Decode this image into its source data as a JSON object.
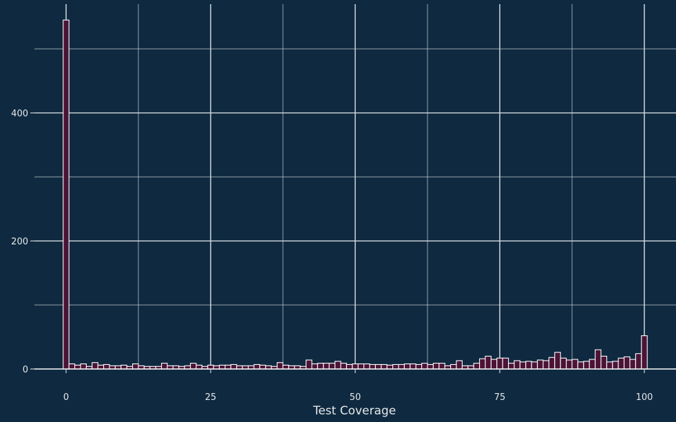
{
  "chart_data": {
    "type": "bar",
    "title": "",
    "xlabel": "Test Coverage",
    "ylabel": "",
    "xlim": [
      -2,
      105
    ],
    "ylim": [
      0,
      565
    ],
    "bin_width": 1,
    "x_ticks": [
      0,
      25,
      50,
      75,
      100
    ],
    "y_ticks": [
      0,
      200,
      400
    ],
    "y_minor_grid": [
      100,
      300,
      500
    ],
    "x_minor_grid": [
      12.5,
      37.5,
      62.5,
      87.5
    ],
    "grid": true,
    "colors": {
      "background": "#0f2a40",
      "bar_fill": "#4b1437",
      "bar_edge": "#ffffff",
      "grid": "#d0d5db",
      "text": "#e6e8ea"
    },
    "bins": [
      0,
      1,
      2,
      3,
      4,
      5,
      6,
      7,
      8,
      9,
      10,
      11,
      12,
      13,
      14,
      15,
      16,
      17,
      18,
      19,
      20,
      21,
      22,
      23,
      24,
      25,
      26,
      27,
      28,
      29,
      30,
      31,
      32,
      33,
      34,
      35,
      36,
      37,
      38,
      39,
      40,
      41,
      42,
      43,
      44,
      45,
      46,
      47,
      48,
      49,
      50,
      51,
      52,
      53,
      54,
      55,
      56,
      57,
      58,
      59,
      60,
      61,
      62,
      63,
      64,
      65,
      66,
      67,
      68,
      69,
      70,
      71,
      72,
      73,
      74,
      75,
      76,
      77,
      78,
      79,
      80,
      81,
      82,
      83,
      84,
      85,
      86,
      87,
      88,
      89,
      90,
      91,
      92,
      93,
      94,
      95,
      96,
      97,
      98,
      99,
      100
    ],
    "values": [
      545,
      8,
      6,
      8,
      4,
      10,
      6,
      7,
      5,
      5,
      6,
      4,
      8,
      5,
      4,
      4,
      4,
      9,
      5,
      5,
      4,
      5,
      9,
      6,
      4,
      6,
      5,
      6,
      6,
      7,
      5,
      5,
      5,
      7,
      6,
      5,
      4,
      10,
      6,
      5,
      5,
      4,
      14,
      8,
      9,
      9,
      9,
      12,
      9,
      7,
      8,
      8,
      8,
      7,
      7,
      7,
      6,
      7,
      7,
      8,
      8,
      7,
      9,
      7,
      9,
      9,
      5,
      7,
      13,
      5,
      5,
      9,
      16,
      20,
      15,
      17,
      17,
      9,
      13,
      11,
      12,
      11,
      14,
      13,
      18,
      26,
      17,
      14,
      15,
      11,
      12,
      15,
      30,
      20,
      11,
      12,
      17,
      19,
      15,
      24,
      52
    ]
  }
}
